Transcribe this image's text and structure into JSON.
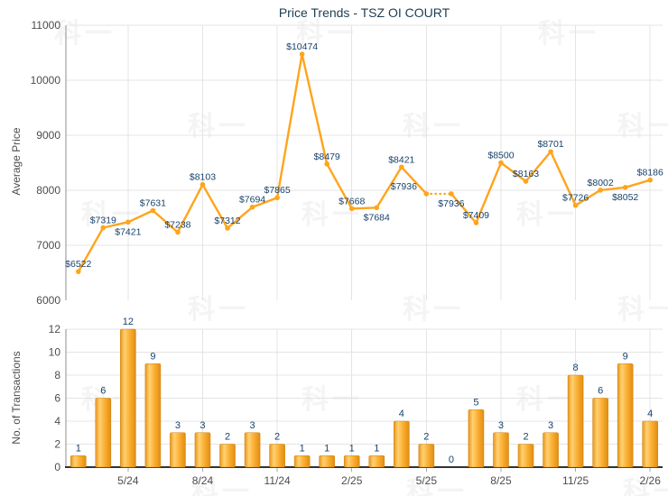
{
  "title": "Price Trends - TSZ OI COURT",
  "watermark": {
    "text": "科一"
  },
  "colors": {
    "line": "#ffa41c",
    "marker": "#ffa41c",
    "bar_edge": "#e9961b",
    "bar_highlight": "#ffd173",
    "bar_mid": "#fbaf33",
    "bar_dark": "#e08e12",
    "bar_outline": "#d4850e",
    "point_label": "#17426b",
    "bar_label": "#17426b",
    "title": "#1e3d52",
    "axis_text": "#4d4d4d",
    "grid": "#e4e4e4",
    "axis_line": "#8c8c8c",
    "baseline": "#333333",
    "tick_mark": "#aaaaaa"
  },
  "chart_data": [
    {
      "type": "line",
      "title": "Price Trends - TSZ OI COURT",
      "ylabel": "Average Price",
      "ylim": [
        6000,
        11000
      ],
      "yticks": [
        6000,
        7000,
        8000,
        9000,
        10000,
        11000
      ],
      "grid": true,
      "series": [
        {
          "name": "Average Price",
          "values": [
            6522,
            7319,
            7421,
            7631,
            7238,
            8103,
            7312,
            7694,
            7865,
            10474,
            8479,
            7668,
            7684,
            8421,
            7936,
            7936,
            7409,
            8500,
            8163,
            8701,
            7726,
            8002,
            8052,
            8186
          ]
        }
      ],
      "point_labels": [
        "$6522",
        "$7319",
        "$7421",
        "$7631",
        "$7238",
        "$8103",
        "$7312",
        "$7694",
        "$7865",
        "$10474",
        "$8479",
        "$7668",
        "$7684",
        "$8421",
        "$7936",
        "$7936",
        "$7409",
        "$8500",
        "$8163",
        "$8701",
        "$7726",
        "$8002",
        "$8052",
        "$8186"
      ],
      "label_below_points": [
        3,
        13,
        16,
        23
      ],
      "label_dx_overrides": {
        "15": -25
      },
      "dotted_segment_between_points": [
        15,
        16
      ],
      "x_tick_positions": [
        3,
        6,
        9,
        12,
        15,
        18,
        21,
        24
      ],
      "x_tick_labels": [
        "5/24",
        "8/24",
        "11/24",
        "2/25",
        "5/25",
        "8/25",
        "11/25",
        "2/26"
      ]
    },
    {
      "type": "bar",
      "ylabel": "No. of Transactions",
      "ylim": [
        0,
        12
      ],
      "yticks": [
        0,
        2,
        4,
        6,
        8,
        10,
        12
      ],
      "grid": true,
      "values": [
        1,
        6,
        12,
        9,
        3,
        3,
        2,
        3,
        2,
        1,
        1,
        1,
        1,
        4,
        2,
        0,
        5,
        3,
        2,
        3,
        8,
        6,
        9,
        4
      ],
      "x_tick_positions": [
        3,
        6,
        9,
        12,
        15,
        18,
        21,
        24
      ],
      "x_tick_labels": [
        "5/24",
        "8/24",
        "11/24",
        "2/25",
        "5/25",
        "8/25",
        "11/25",
        "2/26"
      ]
    }
  ]
}
